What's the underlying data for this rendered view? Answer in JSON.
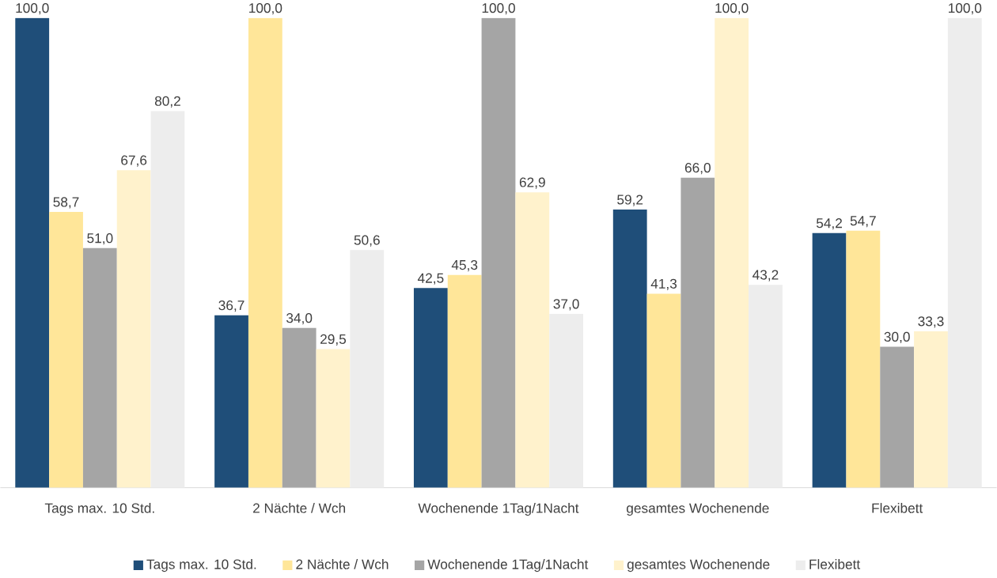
{
  "chart_data": {
    "type": "bar",
    "categories": [
      "Tags max. 10 Std.",
      "2 Nächte / Wch",
      "Wochenende 1Tag/1Nacht",
      "gesamtes Wochenende",
      "Flexibett"
    ],
    "series": [
      {
        "name": "Tags max. 10 Std.",
        "color": "#1f4e79",
        "values": [
          100.0,
          36.7,
          42.5,
          59.2,
          54.2
        ],
        "value_labels": [
          "100,0",
          "36,7",
          "42,5",
          "59,2",
          "54,2"
        ]
      },
      {
        "name": "2 Nächte / Wch",
        "color": "#ffe699",
        "values": [
          58.7,
          100.0,
          45.3,
          41.3,
          54.7
        ],
        "value_labels": [
          "58,7",
          "100,0",
          "45,3",
          "41,3",
          "54,7"
        ]
      },
      {
        "name": "Wochenende 1Tag/1Nacht",
        "color": "#a5a5a5",
        "values": [
          51.0,
          34.0,
          100.0,
          66.0,
          30.0
        ],
        "value_labels": [
          "51,0",
          "34,0",
          "100,0",
          "66,0",
          "30,0"
        ]
      },
      {
        "name": "gesamtes Wochenende",
        "color": "#fff2cc",
        "values": [
          67.6,
          29.5,
          62.9,
          100.0,
          33.3
        ],
        "value_labels": [
          "67,6",
          "29,5",
          "62,9",
          "100,0",
          "33,3"
        ]
      },
      {
        "name": "Flexibett",
        "color": "#ededed",
        "values": [
          80.2,
          50.6,
          37.0,
          43.2,
          100.0
        ],
        "value_labels": [
          "80,2",
          "50,6",
          "37,0",
          "43,2",
          "100,0"
        ]
      }
    ],
    "legend": "bottom",
    "grid": false
  }
}
